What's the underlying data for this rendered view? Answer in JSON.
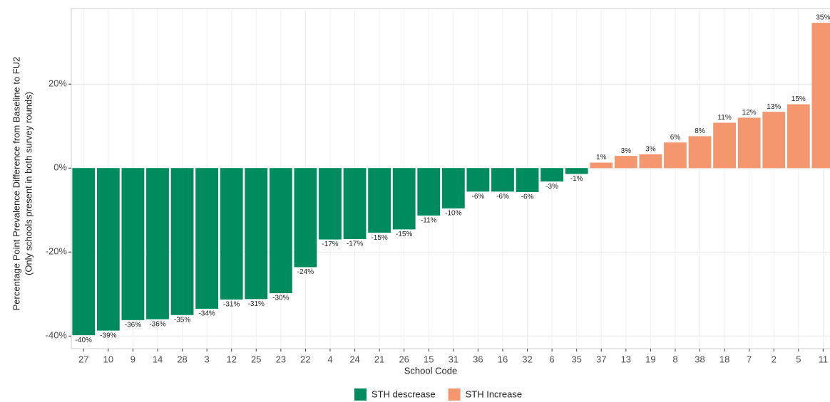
{
  "chart_data": {
    "type": "bar",
    "x_label": "School Code",
    "y_label": [
      "Percentage Point Prevalence Difference from Baseline to FU2",
      "(Only schools present in both survey rounds)"
    ],
    "categories": [
      "27",
      "10",
      "9",
      "14",
      "28",
      "3",
      "12",
      "25",
      "23",
      "22",
      "4",
      "24",
      "21",
      "26",
      "15",
      "31",
      "36",
      "16",
      "32",
      "6",
      "35",
      "37",
      "13",
      "19",
      "8",
      "38",
      "18",
      "7",
      "2",
      "5",
      "11"
    ],
    "series": [
      {
        "name": "STH descrease",
        "color": "#008b5e",
        "values": [
          -39.8,
          -38.7,
          -36.2,
          -36,
          -35,
          -33.5,
          -31.3,
          -31.2,
          -29.8,
          -23.6,
          -17,
          -16.9,
          -15.4,
          -14.6,
          -11.3,
          -9.6,
          -5.6,
          -5.6,
          -5.7,
          -3.2,
          -1.4,
          null,
          null,
          null,
          null,
          null,
          null,
          null,
          null,
          null,
          null
        ],
        "value_labels": [
          "-40%",
          "-39%",
          "-36%",
          "-36%",
          "-35%",
          "-34%",
          "-31%",
          "-31%",
          "-30%",
          "-24%",
          "-17%",
          "-17%",
          "-15%",
          "-15%",
          "-11%",
          "-10%",
          "-6%",
          "-6%",
          "-6%",
          "-3%",
          "-1%",
          null,
          null,
          null,
          null,
          null,
          null,
          null,
          null,
          null,
          null
        ]
      },
      {
        "name": "STH Increase",
        "color": "#f4976e",
        "values": [
          null,
          null,
          null,
          null,
          null,
          null,
          null,
          null,
          null,
          null,
          null,
          null,
          null,
          null,
          null,
          null,
          null,
          null,
          null,
          null,
          null,
          1.3,
          2.9,
          3.3,
          6.1,
          7.6,
          10.8,
          12,
          13.4,
          15.2,
          34.6
        ],
        "value_labels": [
          null,
          null,
          null,
          null,
          null,
          null,
          null,
          null,
          null,
          null,
          null,
          null,
          null,
          null,
          null,
          null,
          null,
          null,
          null,
          null,
          null,
          "1%",
          "3%",
          "3%",
          "6%",
          "8%",
          "11%",
          "12%",
          "13%",
          "15%",
          "35%"
        ]
      }
    ],
    "ylim": [
      -43,
      38
    ],
    "yticks": [
      {
        "value": -40,
        "label": "-40%"
      },
      {
        "value": -20,
        "label": "-20%"
      },
      {
        "value": 0,
        "label": "0%"
      },
      {
        "value": 20,
        "label": "20%"
      }
    ],
    "grid": true,
    "legend": "bottom"
  }
}
